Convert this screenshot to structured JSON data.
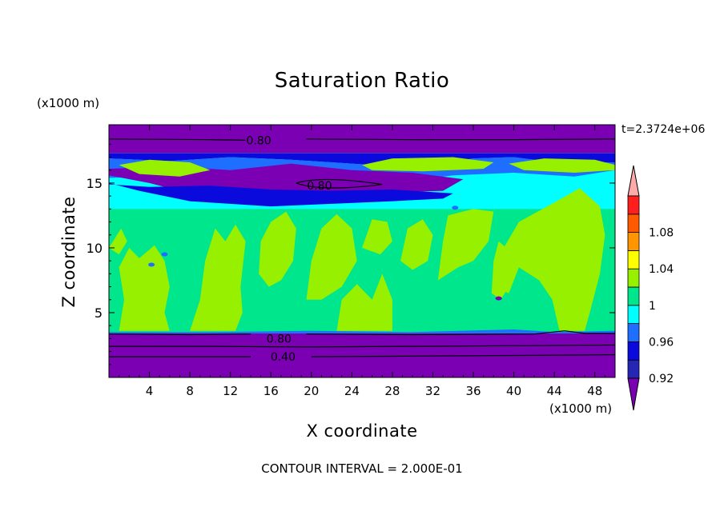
{
  "chart_data": {
    "type": "heatmap",
    "title": "Saturation Ratio",
    "xlabel": "X coordinate",
    "ylabel": "Z coordinate",
    "x_unit": "(x1000 m)",
    "y_unit": "(x1000 m)",
    "time_label": "t=2.3724e+06",
    "footer": "CONTOUR INTERVAL = 2.000E-01",
    "xlim": [
      0,
      50
    ],
    "ylim": [
      0,
      19.5
    ],
    "x_ticks": [
      4,
      8,
      12,
      16,
      20,
      24,
      28,
      32,
      36,
      40,
      44,
      48
    ],
    "y_ticks": [
      5,
      10,
      15
    ],
    "colorbar": {
      "levels": [
        0.92,
        0.94,
        0.96,
        0.98,
        1.0,
        1.02,
        1.04,
        1.06,
        1.08
      ],
      "labels": [
        "0.92",
        "0.96",
        "1",
        "1.04",
        "1.08"
      ],
      "colors": [
        "#7b00b4",
        "#2626b4",
        "#0a0adc",
        "#1e6eff",
        "#00ffff",
        "#00e68c",
        "#96f000",
        "#ffff00",
        "#ff9600",
        "#ff5a00",
        "#ff1e1e",
        "#ffaaaa"
      ]
    },
    "contour_labels": [
      {
        "text": "0.80",
        "x": 14.8,
        "z": 18.3
      },
      {
        "text": "0.80",
        "x": 20.8,
        "z": 14.8
      },
      {
        "text": "0.80",
        "x": 16.8,
        "z": 3.0
      },
      {
        "text": "0.40",
        "x": 17.2,
        "z": 1.6
      }
    ]
  }
}
